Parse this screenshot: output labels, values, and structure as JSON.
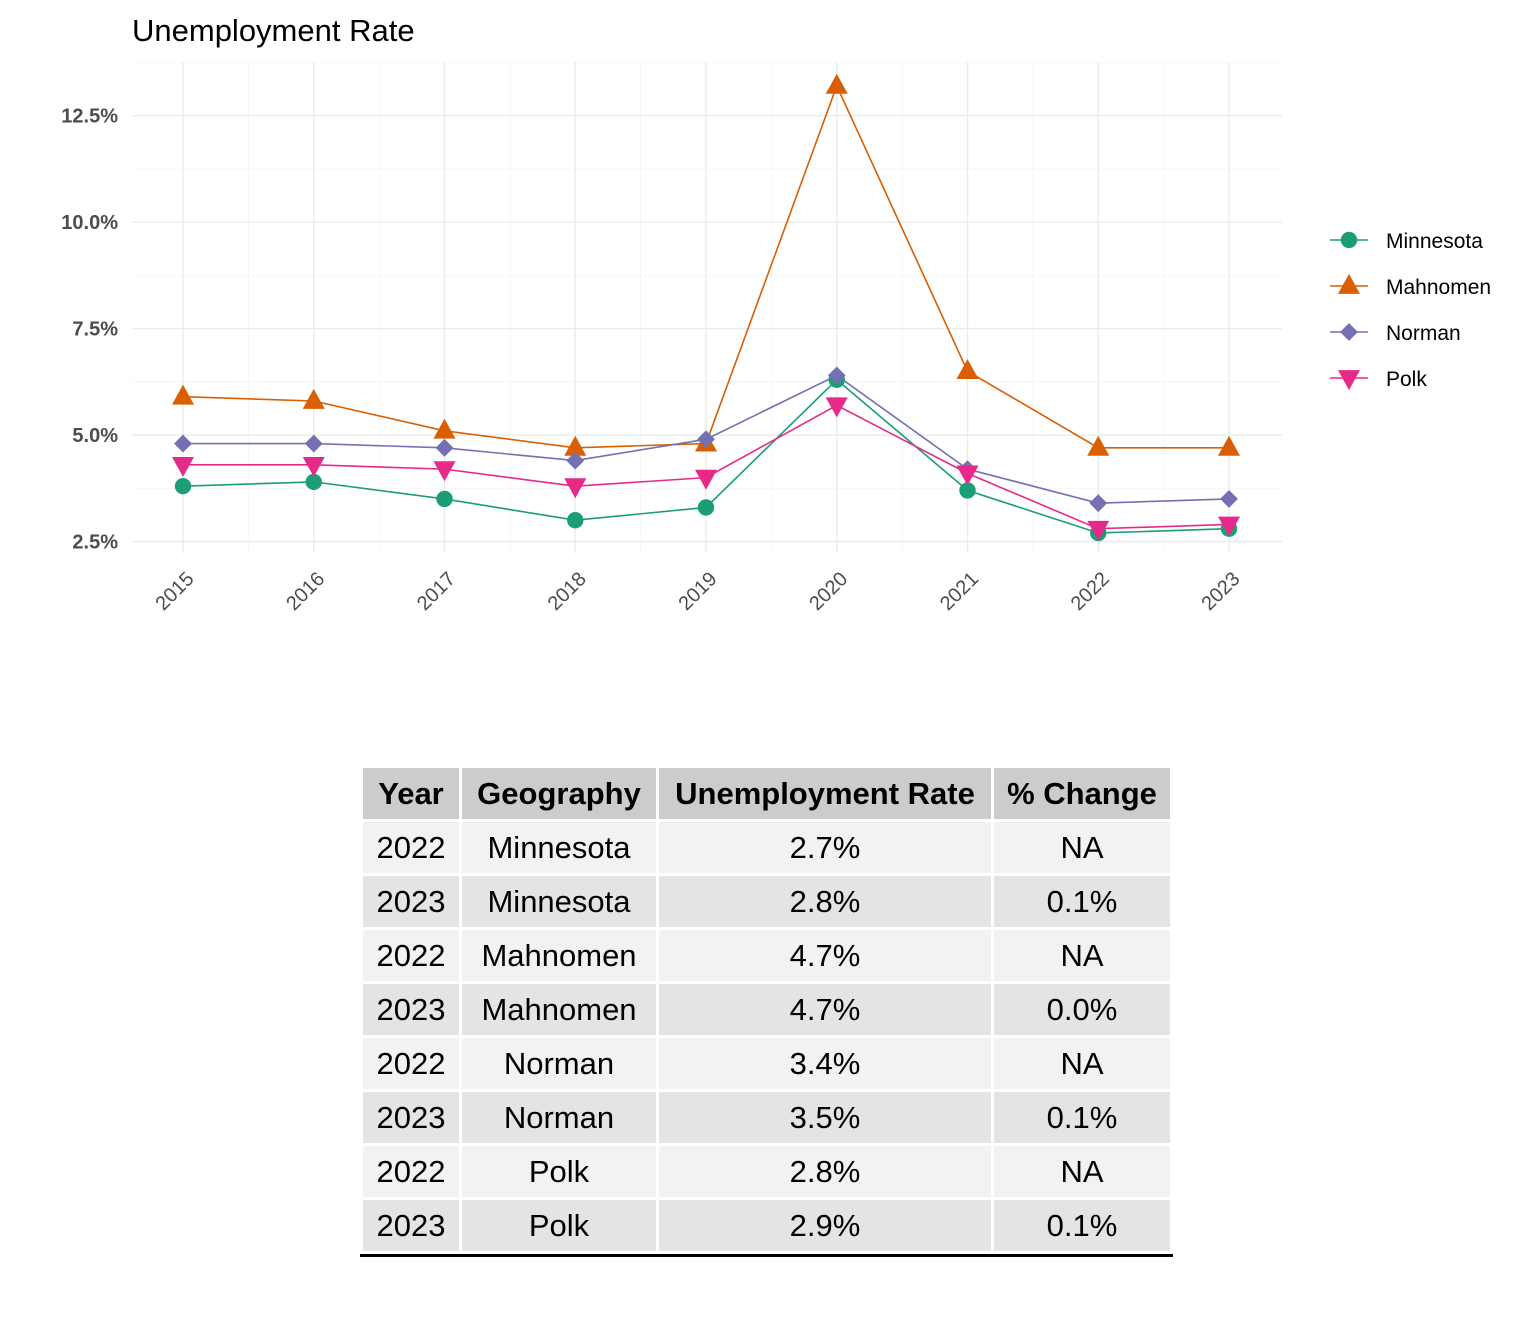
{
  "chart_data": {
    "type": "line",
    "title": "Unemployment Rate",
    "xlabel": "",
    "ylabel": "",
    "x": [
      "2015",
      "2016",
      "2017",
      "2018",
      "2019",
      "2020",
      "2021",
      "2022",
      "2023"
    ],
    "y_ticks": [
      "2.5%",
      "5.0%",
      "7.5%",
      "10.0%",
      "12.5%"
    ],
    "y_tick_values": [
      2.5,
      5.0,
      7.5,
      10.0,
      12.5
    ],
    "ylim": [
      2.5,
      13.5
    ],
    "grid": true,
    "legend_position": "right",
    "series": [
      {
        "name": "Minnesota",
        "marker": "circle",
        "color": "#1b9e77",
        "values": [
          3.8,
          3.9,
          3.5,
          3.0,
          3.3,
          6.3,
          3.7,
          2.7,
          2.8
        ]
      },
      {
        "name": "Mahnomen",
        "marker": "triangle",
        "color": "#d95f02",
        "values": [
          5.9,
          5.8,
          5.1,
          4.7,
          4.8,
          13.2,
          6.5,
          4.7,
          4.7
        ]
      },
      {
        "name": "Norman",
        "marker": "diamond",
        "color": "#7570b3",
        "values": [
          4.8,
          4.8,
          4.7,
          4.4,
          4.9,
          6.4,
          4.2,
          3.4,
          3.5
        ]
      },
      {
        "name": "Polk",
        "marker": "triangle-down",
        "color": "#e7298a",
        "values": [
          4.3,
          4.3,
          4.2,
          3.8,
          4.0,
          5.7,
          4.1,
          2.8,
          2.9
        ]
      }
    ]
  },
  "table": {
    "headers": [
      "Year",
      "Geography",
      "Unemployment Rate",
      "% Change"
    ],
    "rows": [
      [
        "2022",
        "Minnesota",
        "2.7%",
        "NA"
      ],
      [
        "2023",
        "Minnesota",
        "2.8%",
        "0.1%"
      ],
      [
        "2022",
        "Mahnomen",
        "4.7%",
        "NA"
      ],
      [
        "2023",
        "Mahnomen",
        "4.7%",
        "0.0%"
      ],
      [
        "2022",
        "Norman",
        "3.4%",
        "NA"
      ],
      [
        "2023",
        "Norman",
        "3.5%",
        "0.1%"
      ],
      [
        "2022",
        "Polk",
        "2.8%",
        "NA"
      ],
      [
        "2023",
        "Polk",
        "2.9%",
        "0.1%"
      ]
    ]
  }
}
